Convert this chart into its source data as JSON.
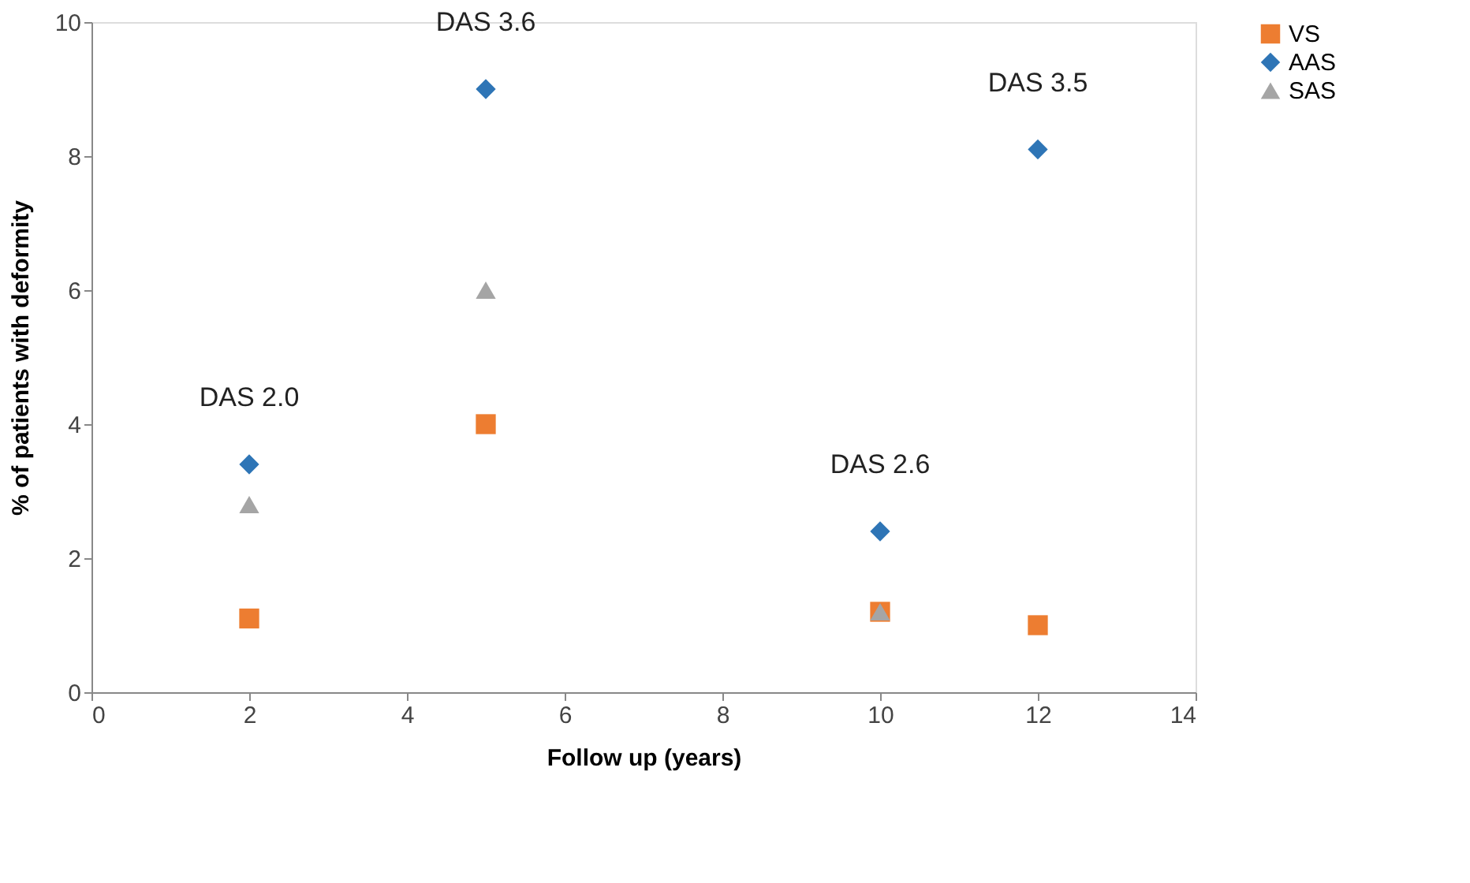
{
  "chart_data": {
    "type": "scatter",
    "xlabel": "Follow up (years)",
    "ylabel": "% of patients with deformity",
    "xlim": [
      0,
      14
    ],
    "xticks": [
      0,
      2,
      4,
      6,
      8,
      10,
      12,
      14
    ],
    "ylim": [
      0,
      10
    ],
    "yticks": [
      0,
      2,
      4,
      6,
      8,
      10
    ],
    "grid": false,
    "legend": "right",
    "series": [
      {
        "name": "VS",
        "color": "#ed7d31",
        "marker": "square",
        "x": [
          2,
          5,
          10,
          12
        ],
        "values": [
          1.1,
          4.0,
          1.2,
          1.0
        ]
      },
      {
        "name": "AAS",
        "color": "#2e75b6",
        "marker": "diamond",
        "x": [
          2,
          5,
          10,
          12
        ],
        "values": [
          3.4,
          9.0,
          2.4,
          8.1
        ]
      },
      {
        "name": "SAS",
        "color": "#a5a5a5",
        "marker": "triangle",
        "x": [
          2,
          5,
          10
        ],
        "values": [
          2.8,
          6.0,
          1.2
        ]
      }
    ],
    "annotations": [
      {
        "text": "DAS 2.0",
        "x": 2,
        "y": 3.4
      },
      {
        "text": "DAS 3.6",
        "x": 5,
        "y": 9.0
      },
      {
        "text": "DAS 2.6",
        "x": 10,
        "y": 2.4
      },
      {
        "text": "DAS 3.5",
        "x": 12,
        "y": 8.1
      }
    ]
  }
}
